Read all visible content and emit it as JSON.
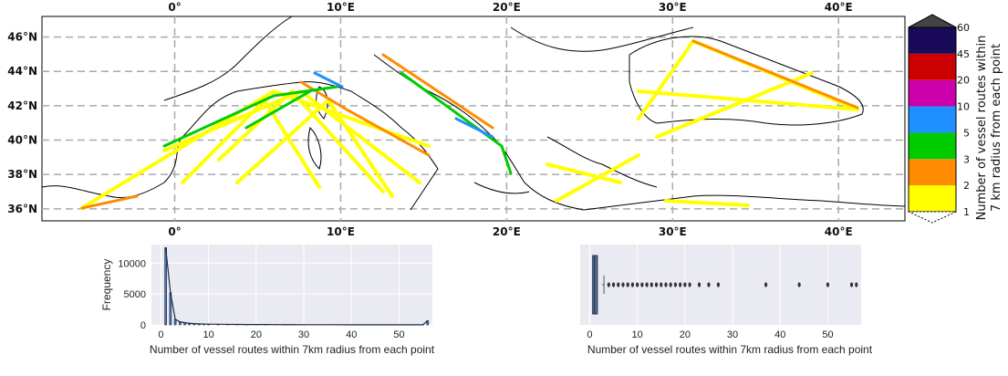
{
  "chart_data": [
    {
      "type": "map",
      "lon_ticks": [
        "0°",
        "10°E",
        "20°E",
        "30°E",
        "40°E"
      ],
      "lat_ticks": [
        "36°N",
        "38°N",
        "40°N",
        "42°N",
        "44°N",
        "46°N"
      ],
      "lon_values": [
        0,
        10,
        20,
        30,
        40
      ],
      "lat_values": [
        36,
        38,
        40,
        42,
        44,
        46
      ],
      "xlim": [
        -8,
        44
      ],
      "ylim": [
        35.3,
        47.2
      ],
      "grid": true,
      "colorbar": {
        "label_line1": "Number of vessel routes within",
        "label_line2": "7 km radius from each point",
        "bounds": [
          "1",
          "2",
          "3",
          "5",
          "10",
          "20",
          "45",
          "60"
        ],
        "colors": [
          "#ffff00",
          "#ff8c00",
          "#00cc00",
          "#1e90ff",
          "#cc00aa",
          "#cc0000",
          "#1a0a5a",
          "#444444"
        ]
      }
    },
    {
      "type": "histogram",
      "xlabel": "Number of vessel routes within 7km radius from each point",
      "ylabel": "Frequency",
      "xticks": [
        "0",
        "10",
        "20",
        "30",
        "40",
        "50"
      ],
      "yticks": [
        "0",
        "5000",
        "10000"
      ],
      "xlim": [
        -2,
        57
      ],
      "ylim": [
        0,
        13000
      ],
      "bins_x": [
        1,
        2,
        3,
        4,
        5,
        6,
        7,
        8,
        9,
        10,
        12,
        14,
        16,
        18,
        20,
        22,
        24,
        26,
        28,
        30,
        33,
        36,
        40,
        45,
        50,
        55,
        56
      ],
      "bins_y": [
        12500,
        5200,
        900,
        500,
        350,
        260,
        200,
        170,
        140,
        120,
        100,
        85,
        70,
        60,
        55,
        50,
        45,
        40,
        35,
        30,
        28,
        25,
        22,
        20,
        18,
        15,
        700
      ]
    },
    {
      "type": "boxplot",
      "xlabel": "Number of vessel routes within 7km radius from each point",
      "xticks": [
        "0",
        "10",
        "20",
        "30",
        "40",
        "50"
      ],
      "xlim": [
        -2,
        57
      ],
      "q1": 1,
      "median": 1,
      "q3": 2,
      "whisker_low": 1,
      "whisker_high": 3,
      "outliers": [
        4,
        5,
        6,
        7,
        8,
        9,
        10,
        11,
        12,
        13,
        14,
        15,
        16,
        17,
        18,
        19,
        20,
        21,
        23,
        25,
        27,
        37,
        44,
        50,
        55,
        56
      ]
    }
  ]
}
